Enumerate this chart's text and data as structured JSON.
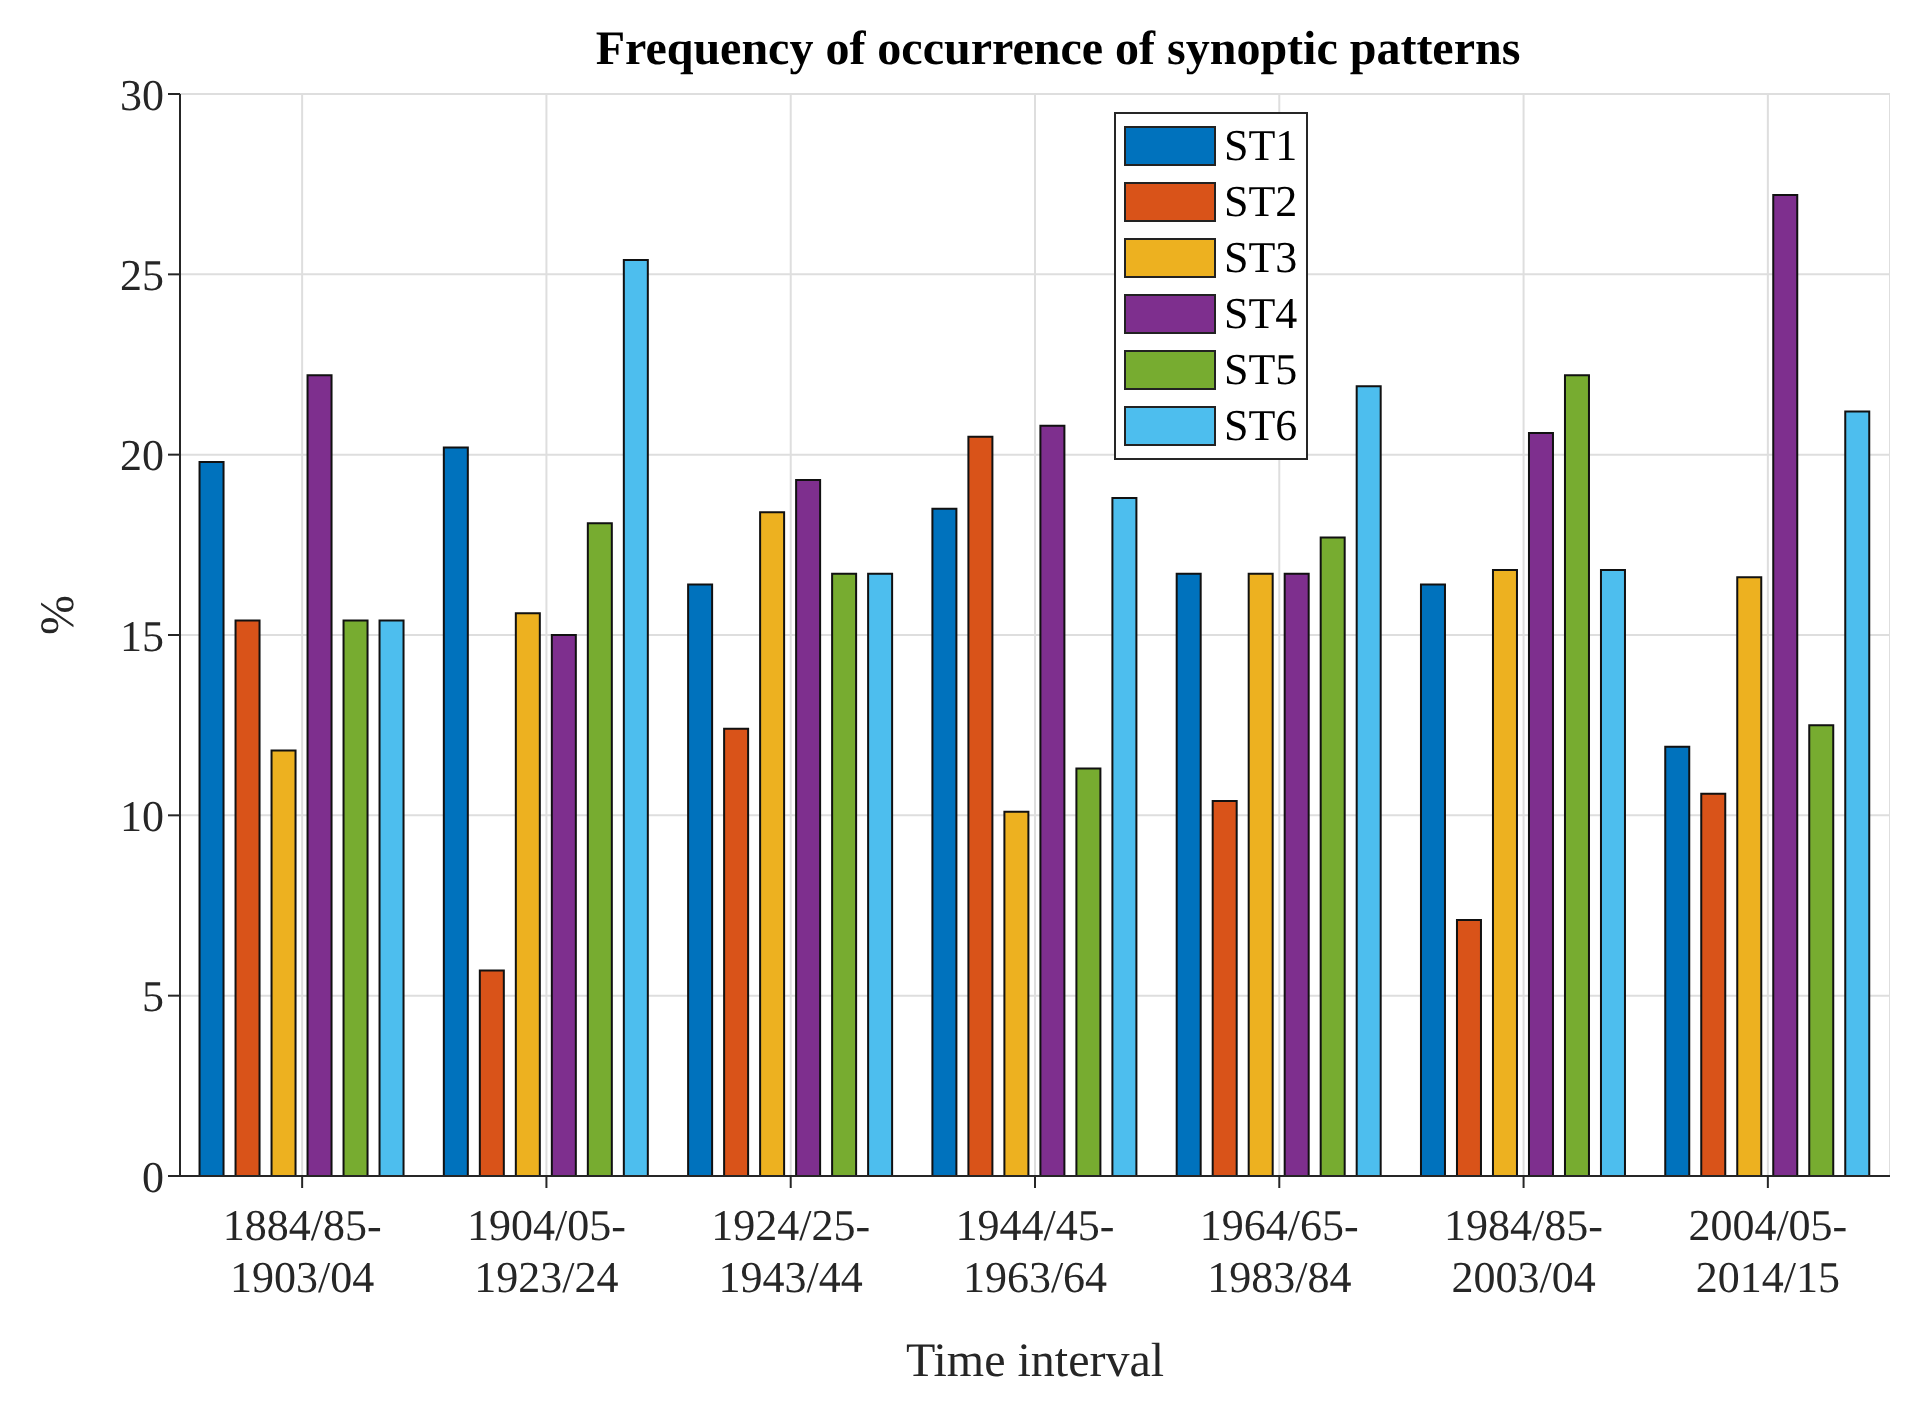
{
  "chart_data": {
    "type": "bar",
    "title": "Frequency of occurrence of synoptic patterns",
    "xlabel": "Time interval",
    "ylabel": "%",
    "categories": [
      "1884/85-\n1903/04",
      "1904/05-\n1923/24",
      "1924/25-\n1943/44",
      "1944/45-\n1963/64",
      "1964/65-\n1983/84",
      "1984/85-\n2003/04",
      "2004/05-\n2014/15"
    ],
    "series": [
      {
        "name": "ST1",
        "color": "#0072bd",
        "values": [
          19.8,
          20.2,
          16.4,
          18.5,
          16.7,
          16.4,
          11.9
        ]
      },
      {
        "name": "ST2",
        "color": "#d95319",
        "values": [
          15.4,
          5.7,
          12.4,
          20.5,
          10.4,
          7.1,
          10.6
        ]
      },
      {
        "name": "ST3",
        "color": "#edb120",
        "values": [
          11.8,
          15.6,
          18.4,
          10.1,
          16.7,
          16.8,
          16.6
        ]
      },
      {
        "name": "ST4",
        "color": "#7e2f8e",
        "values": [
          22.2,
          15.0,
          19.3,
          20.8,
          16.7,
          20.6,
          27.2
        ]
      },
      {
        "name": "ST5",
        "color": "#77ac30",
        "values": [
          15.4,
          18.1,
          16.7,
          11.3,
          17.7,
          22.2,
          12.5
        ]
      },
      {
        "name": "ST6",
        "color": "#4dbeee",
        "values": [
          15.4,
          25.4,
          16.7,
          18.8,
          21.9,
          16.8,
          21.2
        ]
      }
    ],
    "ylim": [
      0,
      30
    ],
    "yticks": [
      0,
      5,
      10,
      15,
      20,
      25,
      30
    ],
    "grid": true,
    "legend": "top"
  }
}
